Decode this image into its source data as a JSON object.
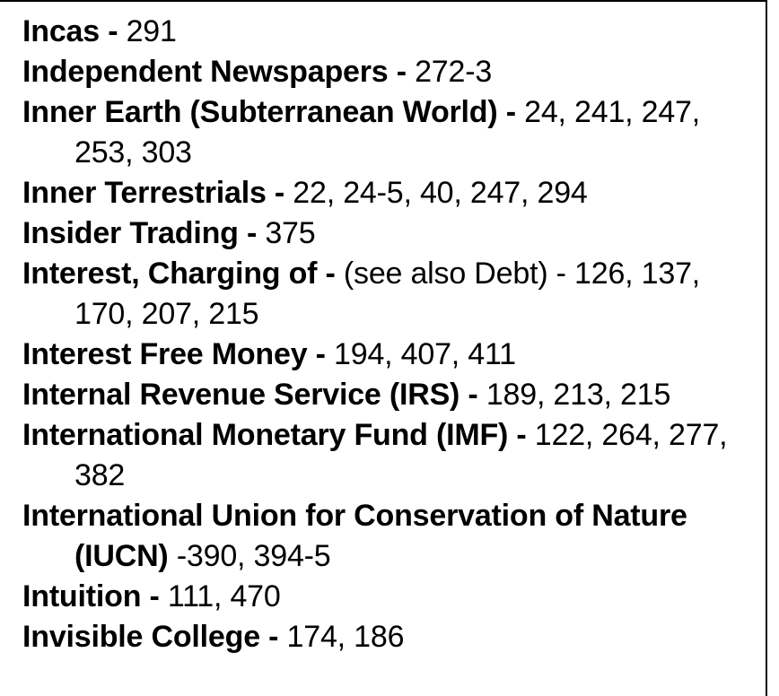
{
  "entries": [
    {
      "term": "Incas -",
      "refs": "291"
    },
    {
      "term": "Independent Newspapers -",
      "refs": "272-3"
    },
    {
      "term": "Inner Earth (Subterranean World) -",
      "refs": "24, 241, 247, 253, 303"
    },
    {
      "term": "Inner Terrestrials -",
      "refs": "22, 24-5, 40, 247, 294"
    },
    {
      "term": "Insider Trading -",
      "refs": "375"
    },
    {
      "term": "Interest, Charging of -",
      "refs": "(see also Debt) - 126, 137, 170, 207, 215"
    },
    {
      "term": "Interest Free Money -",
      "refs": "194, 407, 411"
    },
    {
      "term": "Internal Revenue Service (IRS) -",
      "refs": "189, 213, 215"
    },
    {
      "term": "International Monetary Fund (IMF) -",
      "refs": "122, 264, 277, 382"
    },
    {
      "term": "International Union for Conservation of Nature (IUCN)",
      "refs": "-390, 394-5"
    },
    {
      "term": "Intuition -",
      "refs": "111, 470"
    },
    {
      "term": "Invisible College -",
      "refs": "174, 186"
    }
  ]
}
